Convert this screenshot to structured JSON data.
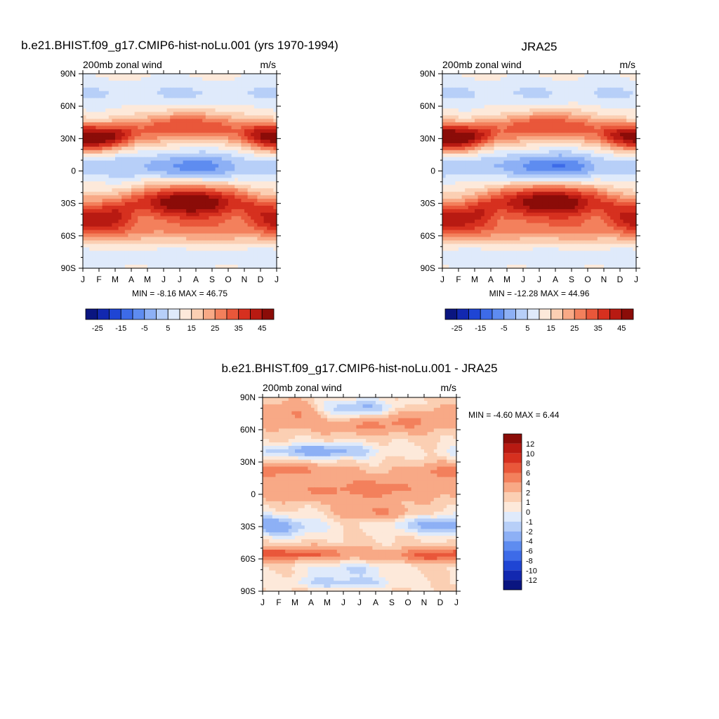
{
  "chart_data": [
    {
      "type": "heatmap",
      "title": "b.e21.BHIST.f09_g17.CMIP6-hist-noLu.001 (yrs 1970-1994)",
      "left_label": "200mb zonal wind",
      "right_label": "m/s",
      "stats": "MIN =  -8.16 MAX =  46.75",
      "x_ticks": [
        "J",
        "F",
        "M",
        "A",
        "M",
        "J",
        "J",
        "A",
        "S",
        "O",
        "N",
        "D",
        "J"
      ],
      "y_ticks": [
        "90N",
        "60N",
        "30N",
        "0",
        "30S",
        "60S",
        "90S"
      ],
      "y_range": [
        -90,
        90
      ],
      "colorbar_ticks": [
        "-25",
        "-15",
        "-5",
        "5",
        "15",
        "25",
        "35",
        "45"
      ],
      "colorbar_levels": [
        -30,
        -25,
        -20,
        -15,
        -10,
        -5,
        0,
        5,
        10,
        15,
        20,
        25,
        30,
        35,
        40,
        45
      ],
      "min": -8.16,
      "max": 46.75
    },
    {
      "type": "heatmap",
      "title": "JRA25",
      "left_label": "200mb zonal wind",
      "right_label": "m/s",
      "stats": "MIN = -12.28 MAX =  44.96",
      "x_ticks": [
        "J",
        "F",
        "M",
        "A",
        "M",
        "J",
        "J",
        "A",
        "S",
        "O",
        "N",
        "D",
        "J"
      ],
      "y_ticks": [
        "90N",
        "60N",
        "30N",
        "0",
        "30S",
        "60S",
        "90S"
      ],
      "y_range": [
        -90,
        90
      ],
      "colorbar_ticks": [
        "-25",
        "-15",
        "-5",
        "5",
        "15",
        "25",
        "35",
        "45"
      ],
      "colorbar_levels": [
        -30,
        -25,
        -20,
        -15,
        -10,
        -5,
        0,
        5,
        10,
        15,
        20,
        25,
        30,
        35,
        40,
        45
      ],
      "min": -12.28,
      "max": 44.96
    },
    {
      "type": "heatmap",
      "title": "b.e21.BHIST.f09_g17.CMIP6-hist-noLu.001 - JRA25",
      "left_label": "200mb zonal wind",
      "right_label": "m/s",
      "stats": "MIN =  -4.60 MAX =   6.44",
      "x_ticks": [
        "J",
        "F",
        "M",
        "A",
        "M",
        "J",
        "J",
        "A",
        "S",
        "O",
        "N",
        "D",
        "J"
      ],
      "y_ticks": [
        "90N",
        "60N",
        "30N",
        "0",
        "30S",
        "60S",
        "90S"
      ],
      "y_range": [
        -90,
        90
      ],
      "colorbar_ticks": [
        "12",
        "10",
        "8",
        "6",
        "4",
        "2",
        "1",
        "0",
        "-1",
        "-2",
        "-4",
        "-6",
        "-8",
        "-10",
        "-12"
      ],
      "min": -4.6,
      "max": 6.44
    }
  ],
  "palette": {
    "blue_red_16": [
      "#0a1580",
      "#1228b0",
      "#1f45d4",
      "#3d6be8",
      "#5e8cf0",
      "#8db0f5",
      "#b7cff8",
      "#dfeafb",
      "#fde9da",
      "#fbcfb3",
      "#f8a986",
      "#f3805c",
      "#e9573a",
      "#d6301f",
      "#b81a12",
      "#8b0c08"
    ],
    "diff_16": [
      "#8b0c08",
      "#b81a12",
      "#d6301f",
      "#e9573a",
      "#f3805c",
      "#f8a986",
      "#fbcfb3",
      "#fde9da",
      "#dfeafb",
      "#b7cff8",
      "#8db0f5",
      "#5e8cf0",
      "#3d6be8",
      "#1f45d4",
      "#1228b0",
      "#0a1580"
    ]
  }
}
